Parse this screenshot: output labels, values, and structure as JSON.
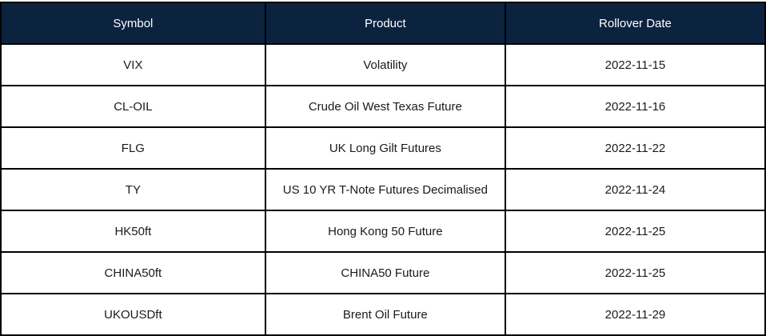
{
  "chart_data": {
    "type": "table",
    "columns": [
      "Symbol",
      "Product",
      "Rollover Date"
    ],
    "rows": [
      [
        "VIX",
        "Volatility",
        "2022-11-15"
      ],
      [
        "CL-OIL",
        "Crude Oil West Texas Future",
        "2022-11-16"
      ],
      [
        "FLG",
        "UK Long Gilt Futures",
        "2022-11-22"
      ],
      [
        "TY",
        "US 10 YR T-Note Futures Decimalised",
        "2022-11-24"
      ],
      [
        "HK50ft",
        "Hong Kong 50 Future",
        "2022-11-25"
      ],
      [
        "CHINA50ft",
        "CHINA50 Future",
        "2022-11-25"
      ],
      [
        "UKOUSDft",
        "Brent Oil Future",
        "2022-11-29"
      ]
    ]
  },
  "colors": {
    "header_bg": "#0c2340",
    "header_text": "#ffffff",
    "cell_text": "#1a1a1a",
    "border": "#000000"
  }
}
